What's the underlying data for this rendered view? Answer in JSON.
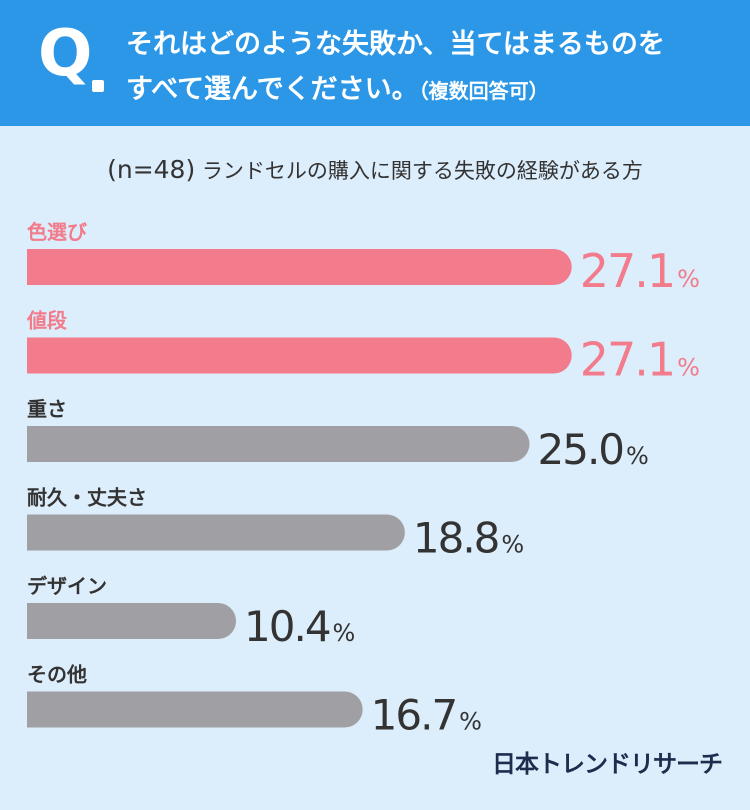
{
  "question": {
    "mark": "Q",
    "line1": "それはどのような失敗か、当てはまるものを",
    "line2": "すべて選んでください。",
    "note": "（複数回答可）"
  },
  "sample": {
    "n": "(n=48)",
    "label": "ランドセルの購入に関する失敗の経験がある方"
  },
  "brand": "日本トレンドリサーチ",
  "colors": {
    "highlight": "#f27b8c",
    "default": "#a0a0a4",
    "value_default": "#333333",
    "label_default": "#333333"
  },
  "chart_data": {
    "type": "bar",
    "orientation": "horizontal",
    "unit": "%",
    "categories": [
      "色選び",
      "値段",
      "重さ",
      "耐久・丈夫さ",
      "デザイン",
      "その他"
    ],
    "values": [
      27.1,
      27.1,
      25.0,
      18.8,
      10.4,
      16.7
    ],
    "value_labels": [
      "27.1",
      "27.1",
      "25.0",
      "18.8",
      "10.4",
      "16.7"
    ],
    "highlighted": [
      true,
      true,
      false,
      false,
      false,
      false
    ]
  }
}
